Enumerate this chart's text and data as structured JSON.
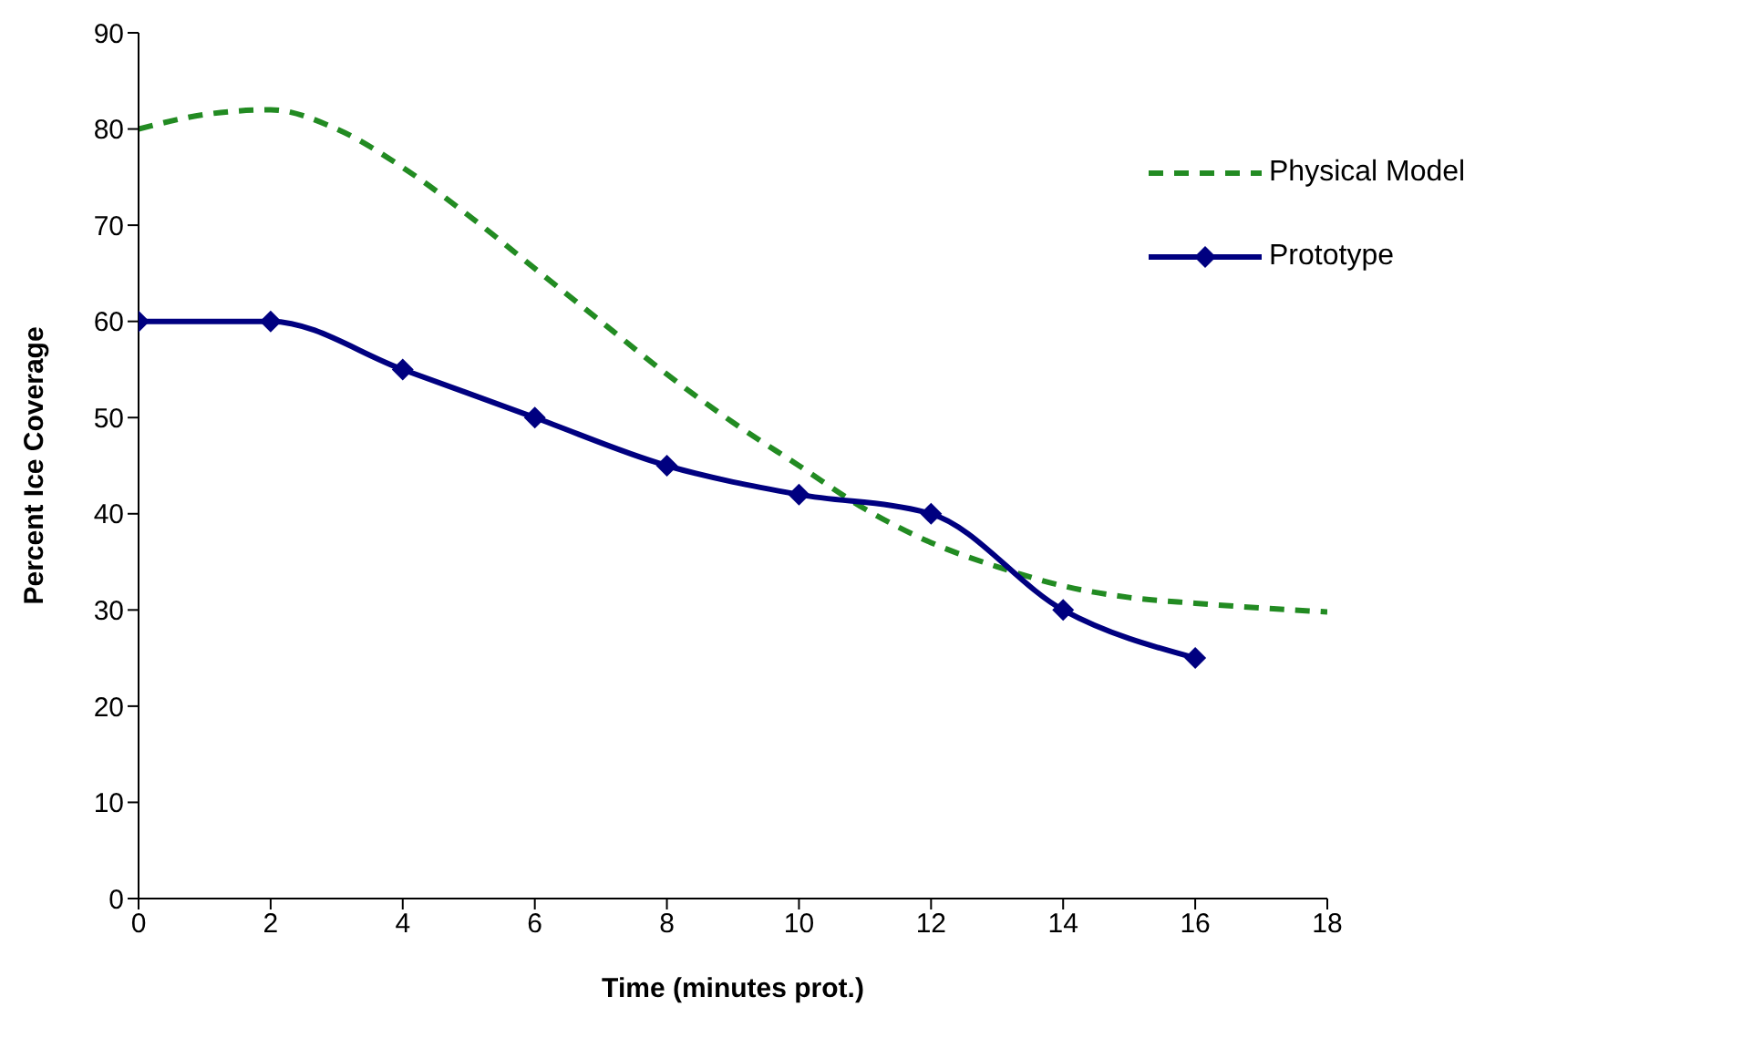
{
  "chart_data": {
    "type": "line",
    "xlabel": "Time (minutes prot.)",
    "ylabel": "Percent Ice Coverage",
    "xlim": [
      0,
      18
    ],
    "xticks": [
      0,
      2,
      4,
      6,
      8,
      10,
      12,
      14,
      16,
      18
    ],
    "ylim": [
      0,
      90
    ],
    "yticks": [
      0,
      10,
      20,
      30,
      40,
      50,
      60,
      70,
      80,
      90
    ],
    "legend": "top right",
    "series": [
      {
        "name": "Physical Model",
        "color": "#228b22",
        "line_style": "dashed",
        "marker": "none",
        "x": [
          0,
          1,
          2,
          3,
          4,
          5,
          6,
          7,
          8,
          9,
          10,
          11,
          12,
          13,
          14,
          15,
          16,
          17,
          18
        ],
        "values": [
          80,
          81.5,
          82,
          80,
          76,
          71,
          65.5,
          60,
          54.5,
          49.5,
          45,
          40.5,
          37,
          34.5,
          32.5,
          31.3,
          30.7,
          30.2,
          29.8
        ]
      },
      {
        "name": "Prototype",
        "color": "#000080",
        "line_style": "solid",
        "marker": "diamond",
        "x": [
          0,
          2,
          4,
          6,
          8,
          10,
          12,
          14,
          16
        ],
        "values": [
          60,
          60,
          55,
          50,
          45,
          42,
          40,
          30,
          25
        ]
      }
    ]
  }
}
